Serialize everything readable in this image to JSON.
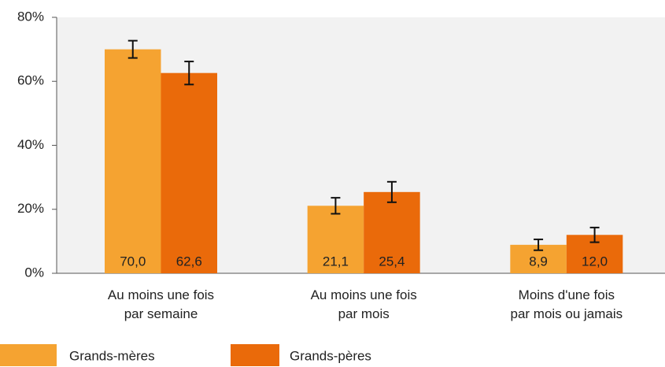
{
  "chart_data": {
    "type": "bar",
    "categories": [
      [
        "Au moins une fois",
        "par semaine"
      ],
      [
        "Au moins une fois",
        "par mois"
      ],
      [
        "Moins d'une fois",
        "par mois ou jamais"
      ]
    ],
    "series": [
      {
        "name": "Grands-mères",
        "color": "#f5a331",
        "values": [
          70.0,
          21.1,
          8.9
        ],
        "value_labels": [
          "70,0",
          "21,1",
          "8,9"
        ],
        "errors": [
          2.7,
          2.5,
          1.7
        ]
      },
      {
        "name": "Grands-pères",
        "color": "#ea6a0a",
        "values": [
          62.6,
          25.4,
          12.0
        ],
        "value_labels": [
          "62,6",
          "25,4",
          "12,0"
        ],
        "errors": [
          3.6,
          3.2,
          2.3
        ]
      }
    ],
    "ylim": [
      0,
      80
    ],
    "yticks": [
      {
        "value": 0,
        "label": "0%"
      },
      {
        "value": 20,
        "label": "20%"
      },
      {
        "value": 40,
        "label": "40%"
      },
      {
        "value": 60,
        "label": "60%"
      },
      {
        "value": 80,
        "label": "80%"
      }
    ],
    "grid": false,
    "legend": "bottom"
  }
}
